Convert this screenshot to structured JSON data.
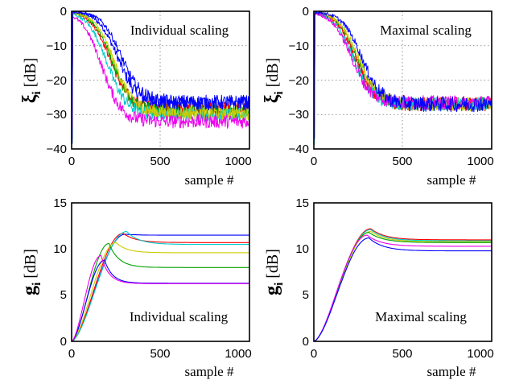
{
  "chart_data": [
    {
      "id": "xi-individual",
      "type": "line",
      "annotation": "Individual scaling",
      "xlabel": "sample #",
      "ylabel": {
        "symbol": "ξ",
        "sub": "i",
        "unit": " [dB]"
      },
      "xlim": [
        0,
        1000
      ],
      "ylim": [
        -40,
        0
      ],
      "xticks": [
        "0",
        "500",
        "1000"
      ],
      "yticks": [
        "0",
        "−10",
        "−20",
        "−30",
        "−40"
      ],
      "grid": true,
      "curves": [
        {
          "color": "#0000ff",
          "floor": -27,
          "t": 260,
          "noise": 2.2
        },
        {
          "color": "#ff0000",
          "floor": -28.5,
          "t": 220,
          "noise": 2.0
        },
        {
          "color": "#00a000",
          "floor": -29,
          "t": 230,
          "noise": 2.0
        },
        {
          "color": "#00cccc",
          "floor": -30,
          "t": 200,
          "noise": 2.0
        },
        {
          "color": "#cccc00",
          "floor": -29.5,
          "t": 240,
          "noise": 2.0
        },
        {
          "color": "#ee00ee",
          "floor": -32,
          "t": 170,
          "noise": 2.0
        },
        {
          "color": "#0000ff",
          "floor": -26.5,
          "t": 280,
          "noise": 2.2
        }
      ]
    },
    {
      "id": "xi-maximal",
      "type": "line",
      "annotation": "Maximal scaling",
      "xlabel": "sample #",
      "ylabel": {
        "symbol": "ξ",
        "sub": "i",
        "unit": " [dB]"
      },
      "xlim": [
        0,
        1000
      ],
      "ylim": [
        -40,
        0
      ],
      "xticks": [
        "0",
        "500",
        "1000"
      ],
      "yticks": [
        "0",
        "−10",
        "−20",
        "−30",
        "−40"
      ],
      "grid": true,
      "curves": [
        {
          "color": "#00a000",
          "floor": -27,
          "t": 240,
          "noise": 2.0
        },
        {
          "color": "#ff0000",
          "floor": -27,
          "t": 230,
          "noise": 2.0
        },
        {
          "color": "#cccc00",
          "floor": -27,
          "t": 250,
          "noise": 2.0
        },
        {
          "color": "#00cccc",
          "floor": -27,
          "t": 220,
          "noise": 2.0
        },
        {
          "color": "#ee00ee",
          "floor": -26.5,
          "t": 210,
          "noise": 2.0
        },
        {
          "color": "#0000ff",
          "floor": -27,
          "t": 270,
          "noise": 2.2
        }
      ]
    },
    {
      "id": "g-individual",
      "type": "line",
      "annotation": "Individual scaling",
      "xlabel": "sample #",
      "ylabel": {
        "symbol": "g",
        "sub": "i",
        "unit": " [dB]"
      },
      "xlim": [
        0,
        1000
      ],
      "ylim": [
        0,
        15
      ],
      "xticks": [
        "0",
        "500",
        "1000"
      ],
      "yticks": [
        "15",
        "10",
        "5",
        "0"
      ],
      "grid": false,
      "curves": [
        {
          "color": "#0000ff",
          "peak": 11.6,
          "xp": 300,
          "final": 11.5,
          "w": 70
        },
        {
          "color": "#ff0000",
          "peak": 11.7,
          "xp": 290,
          "final": 10.7,
          "w": 70
        },
        {
          "color": "#00cccc",
          "peak": 11.9,
          "xp": 310,
          "final": 10.5,
          "w": 70
        },
        {
          "color": "#cccc00",
          "peak": 10.7,
          "xp": 250,
          "final": 9.6,
          "w": 60
        },
        {
          "color": "#00a000",
          "peak": 10.6,
          "xp": 210,
          "final": 8.0,
          "w": 55
        },
        {
          "color": "#0000ff",
          "peak": 8.8,
          "xp": 185,
          "final": 6.3,
          "w": 45
        },
        {
          "color": "#ee00ee",
          "peak": 9.3,
          "xp": 165,
          "final": 6.25,
          "w": 45
        }
      ]
    },
    {
      "id": "g-maximal",
      "type": "line",
      "annotation": "Maximal scaling",
      "xlabel": "sample #",
      "ylabel": {
        "symbol": "g",
        "sub": "i",
        "unit": " [dB]"
      },
      "xlim": [
        0,
        1000
      ],
      "ylim": [
        0,
        15
      ],
      "xticks": [
        "0",
        "500",
        "1000"
      ],
      "yticks": [
        "15",
        "10",
        "5",
        "0"
      ],
      "grid": false,
      "curves": [
        {
          "color": "#ff0000",
          "peak": 12.2,
          "xp": 320,
          "final": 11.0,
          "w": 80
        },
        {
          "color": "#00cccc",
          "peak": 12.1,
          "xp": 320,
          "final": 10.9,
          "w": 80
        },
        {
          "color": "#cccc00",
          "peak": 11.9,
          "xp": 320,
          "final": 10.8,
          "w": 80
        },
        {
          "color": "#00a000",
          "peak": 11.8,
          "xp": 310,
          "final": 10.7,
          "w": 80
        },
        {
          "color": "#ee00ee",
          "peak": 11.5,
          "xp": 300,
          "final": 10.3,
          "w": 80
        },
        {
          "color": "#0000ff",
          "peak": 11.2,
          "xp": 310,
          "final": 9.8,
          "w": 80
        }
      ]
    }
  ]
}
